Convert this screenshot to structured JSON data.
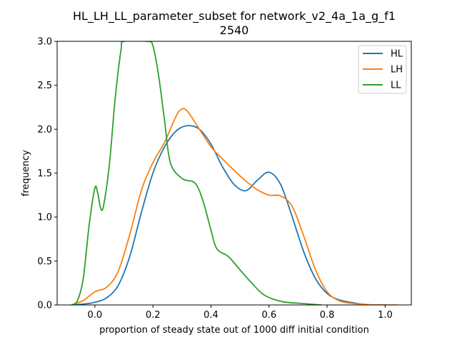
{
  "chart_data": {
    "type": "line",
    "title_line1": "HL_LH_LL_parameter_subset for network_v2_4a_1a_g_f1",
    "title_line2": "2540",
    "xlabel": "proportion of steady state out of 1000 diff initial condition",
    "ylabel": "frequency",
    "xlim": [
      -0.13,
      1.09
    ],
    "ylim": [
      0,
      3.0
    ],
    "xticks": [
      0.0,
      0.2,
      0.4,
      0.6,
      0.8,
      1.0
    ],
    "xtick_labels": [
      "0.0",
      "0.2",
      "0.4",
      "0.6",
      "0.8",
      "1.0"
    ],
    "yticks": [
      0.0,
      0.5,
      1.0,
      1.5,
      2.0,
      2.5,
      3.0
    ],
    "ytick_labels": [
      "0.0",
      "0.5",
      "1.0",
      "1.5",
      "2.0",
      "2.5",
      "3.0"
    ],
    "legend_position": "top-right",
    "grid": false,
    "series": [
      {
        "name": "HL",
        "color": "#1f77b4",
        "x": [
          -0.08,
          -0.04,
          0.0,
          0.04,
          0.08,
          0.12,
          0.16,
          0.2,
          0.24,
          0.28,
          0.32,
          0.36,
          0.4,
          0.44,
          0.48,
          0.52,
          0.56,
          0.6,
          0.64,
          0.68,
          0.72,
          0.76,
          0.8,
          0.84,
          0.88,
          0.92,
          0.96,
          1.0
        ],
        "y": [
          0.0,
          0.01,
          0.03,
          0.08,
          0.22,
          0.55,
          1.05,
          1.5,
          1.8,
          1.98,
          2.04,
          2.0,
          1.83,
          1.57,
          1.37,
          1.3,
          1.42,
          1.51,
          1.37,
          1.0,
          0.6,
          0.3,
          0.13,
          0.06,
          0.03,
          0.01,
          0.0,
          0.0
        ]
      },
      {
        "name": "LH",
        "color": "#ff7f0e",
        "x": [
          -0.08,
          -0.04,
          0.0,
          0.04,
          0.08,
          0.12,
          0.16,
          0.2,
          0.24,
          0.28,
          0.3,
          0.32,
          0.36,
          0.4,
          0.44,
          0.48,
          0.52,
          0.56,
          0.6,
          0.64,
          0.68,
          0.72,
          0.76,
          0.8,
          0.84,
          0.88,
          0.92,
          0.96,
          1.0,
          1.04
        ],
        "y": [
          0.0,
          0.05,
          0.15,
          0.2,
          0.38,
          0.8,
          1.3,
          1.62,
          1.85,
          2.15,
          2.23,
          2.2,
          2.0,
          1.8,
          1.66,
          1.53,
          1.41,
          1.31,
          1.25,
          1.24,
          1.12,
          0.78,
          0.4,
          0.15,
          0.05,
          0.02,
          0.01,
          0.0,
          0.0,
          0.0
        ]
      },
      {
        "name": "LL",
        "color": "#2ca02c",
        "x": [
          -0.08,
          -0.06,
          -0.04,
          -0.02,
          0.0,
          0.01,
          0.02,
          0.03,
          0.05,
          0.07,
          0.09,
          0.1,
          0.18,
          0.2,
          0.22,
          0.24,
          0.26,
          0.3,
          0.34,
          0.36,
          0.38,
          0.4,
          0.42,
          0.46,
          0.5,
          0.54,
          0.58,
          0.62,
          0.66,
          0.7,
          0.74,
          0.78
        ],
        "y": [
          0.0,
          0.05,
          0.3,
          0.9,
          1.33,
          1.27,
          1.1,
          1.13,
          1.6,
          2.35,
          2.9,
          3.0,
          3.0,
          2.95,
          2.6,
          2.1,
          1.62,
          1.44,
          1.4,
          1.3,
          1.1,
          0.85,
          0.64,
          0.55,
          0.4,
          0.25,
          0.12,
          0.06,
          0.03,
          0.02,
          0.01,
          0.0
        ]
      }
    ]
  }
}
